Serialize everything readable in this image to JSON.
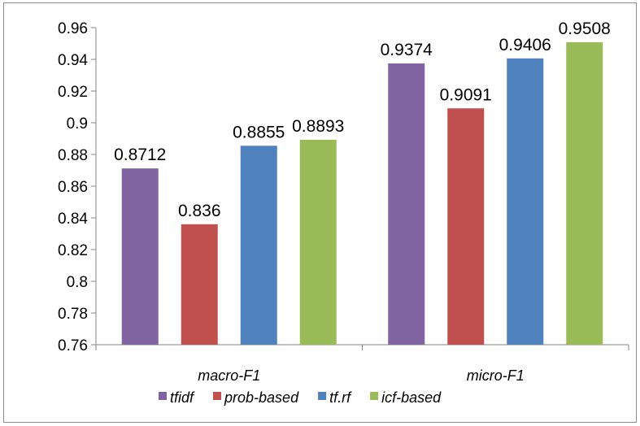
{
  "chart_data": {
    "type": "bar",
    "categories": [
      "macro-F1",
      "micro-F1"
    ],
    "series": [
      {
        "name": "tfidf",
        "color": "#8064A2",
        "values": [
          0.8712,
          0.9374
        ],
        "labels": [
          "0.8712",
          "0.9374"
        ]
      },
      {
        "name": "prob-based",
        "color": "#C0504D",
        "values": [
          0.836,
          0.9091
        ],
        "labels": [
          "0.836",
          "0.9091"
        ]
      },
      {
        "name": "tf.rf",
        "color": "#4F81BD",
        "values": [
          0.8855,
          0.9406
        ],
        "labels": [
          "0.8855",
          "0.9406"
        ]
      },
      {
        "name": "icf-based",
        "color": "#9BBB59",
        "values": [
          0.8893,
          0.9508
        ],
        "labels": [
          "0.8893",
          "0.9508"
        ]
      }
    ],
    "ylim": [
      0.76,
      0.96
    ],
    "y_ticks": [
      "0.76",
      "0.78",
      "0.8",
      "0.82",
      "0.84",
      "0.86",
      "0.88",
      "0.9",
      "0.92",
      "0.94",
      "0.96"
    ],
    "legend_position": "bottom",
    "grid": false
  }
}
